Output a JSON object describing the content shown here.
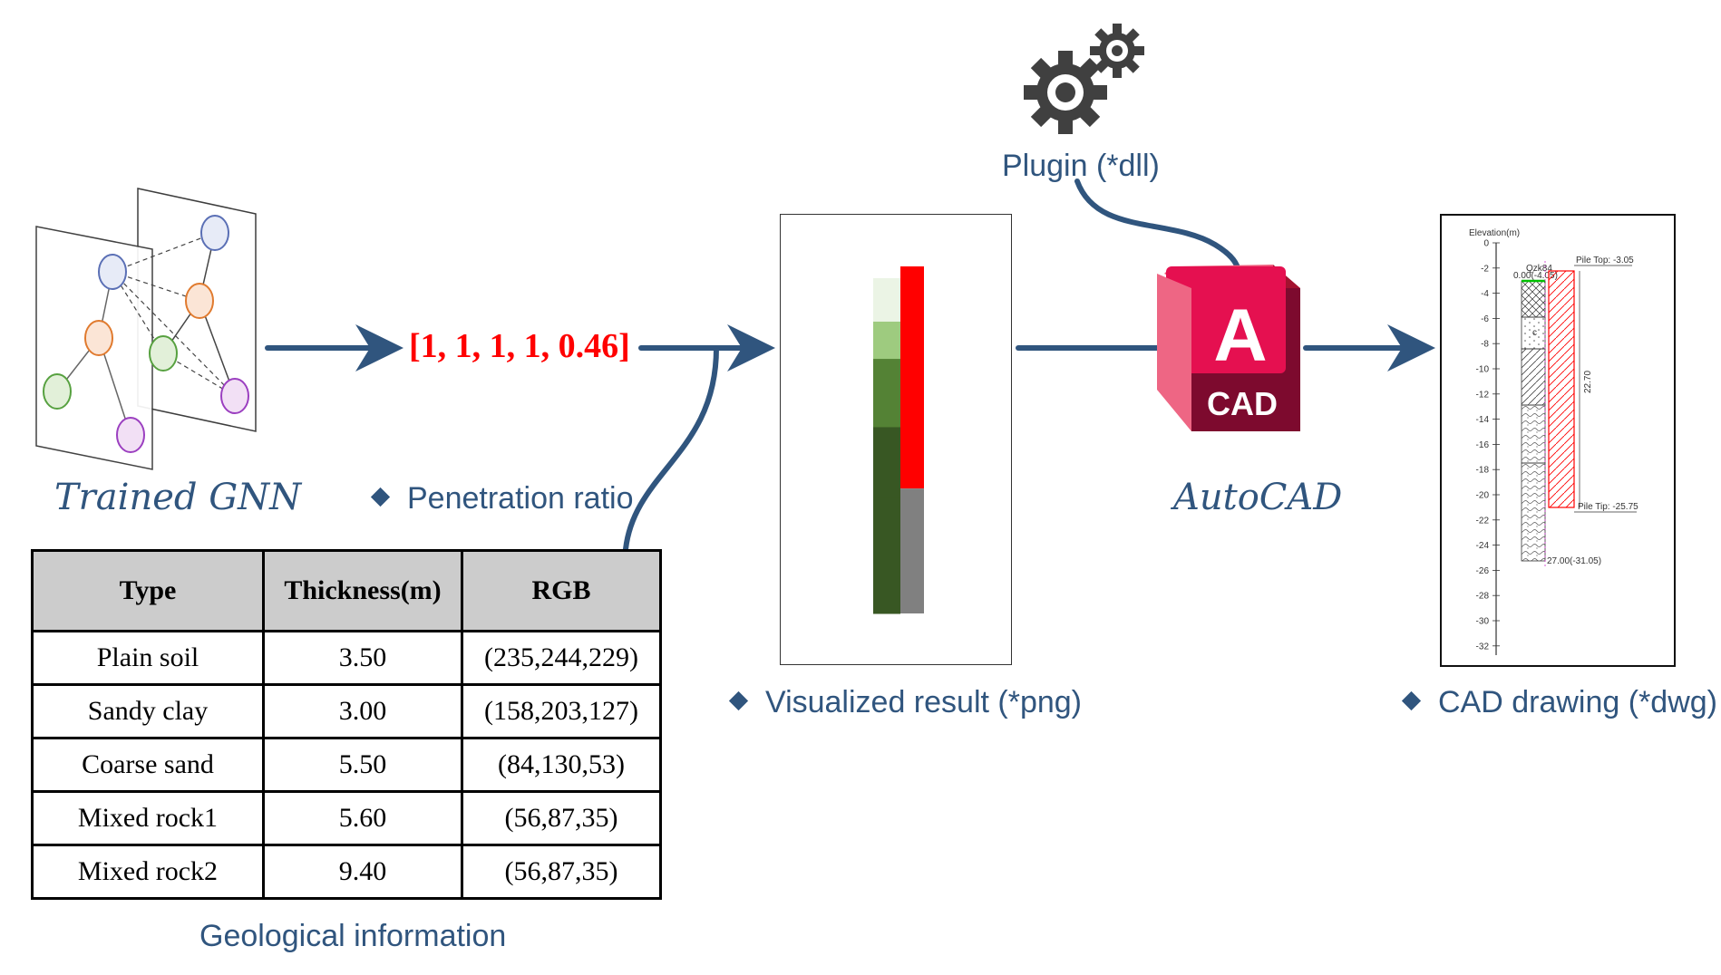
{
  "gnn": {
    "label": "Trained GNN"
  },
  "penetration": {
    "vector": "[1, 1, 1, 1, 0.46]",
    "label": "Penetration ratio"
  },
  "table": {
    "caption": "Geological information",
    "headers": [
      "Type",
      "Thickness(m)",
      "RGB"
    ],
    "rows": [
      [
        "Plain soil",
        "3.50",
        "(235,244,229)"
      ],
      [
        "Sandy clay",
        "3.00",
        "(158,203,127)"
      ],
      [
        "Coarse sand",
        "5.50",
        "(84,130,53)"
      ],
      [
        "Mixed rock1",
        "5.60",
        "(56,87,35)"
      ],
      [
        "Mixed rock2",
        "9.40",
        "(56,87,35)"
      ]
    ]
  },
  "visualized": {
    "label": "Visualized result (*png)"
  },
  "plugin": {
    "label": "Plugin (*dll)"
  },
  "autocad": {
    "label": "AutoCAD",
    "logo_letter": "A",
    "logo_text": "CAD"
  },
  "cad_drawing": {
    "label": "CAD drawing (*dwg)",
    "elevation_title": "Elevation(m)",
    "ticks": [
      "0",
      "-2",
      "-4",
      "-6",
      "-8",
      "-10",
      "-12",
      "-14",
      "-16",
      "-18",
      "-20",
      "-22",
      "-24",
      "-26",
      "-28",
      "-30",
      "-32"
    ],
    "pile_top": "Pile Top: -3.05",
    "pile_tip": "Pile Tip: -25.75",
    "pile_length": "22.70",
    "layer_code": "Qzk84",
    "top_depth": "0.00(-4.05)",
    "bottom_depth": "27.00(-31.05)",
    "mark": "c"
  },
  "colors": {
    "flow_arrow": "#30557e",
    "ratio_text": "#ff0000",
    "table_header_bg": "#cccccc",
    "pile_red": "#ff0000",
    "pile_grey": "#808080",
    "autocad_red": "#e51050",
    "autocad_dark": "#7d0a2e"
  },
  "penetration_column": {
    "pile_fraction_red": 0.64
  },
  "strata_colors": [
    "#ebf4e5",
    "#9ecb7f",
    "#548235",
    "#385723",
    "#385723"
  ]
}
